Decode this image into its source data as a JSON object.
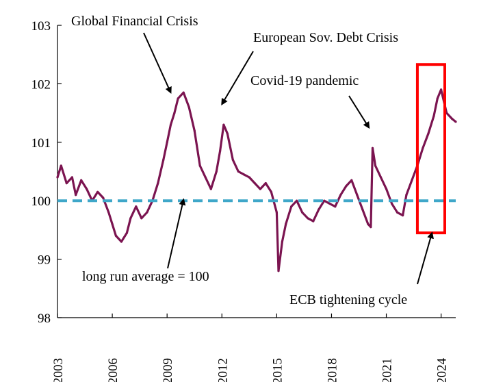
{
  "chart_data": {
    "type": "line",
    "title": "",
    "xlabel": "",
    "ylabel": "",
    "x_ticks": [
      "2003",
      "2006",
      "2009",
      "2012",
      "2015",
      "2018",
      "2021",
      "2024"
    ],
    "y_ticks": [
      "98",
      "99",
      "100",
      "101",
      "102",
      "103"
    ],
    "xlim": [
      2003.0,
      2024.8
    ],
    "ylim": [
      98,
      103
    ],
    "grid": false,
    "series": [
      {
        "color": "#7b1450",
        "style": "solid",
        "x": [
          2003.0,
          2003.2,
          2003.5,
          2003.8,
          2004.0,
          2004.3,
          2004.6,
          2004.9,
          2005.2,
          2005.5,
          2005.8,
          2006.0,
          2006.2,
          2006.5,
          2006.8,
          2007.0,
          2007.3,
          2007.6,
          2007.9,
          2008.2,
          2008.5,
          2008.8,
          2009.0,
          2009.2,
          2009.4,
          2009.6,
          2009.9,
          2010.2,
          2010.5,
          2010.8,
          2011.1,
          2011.4,
          2011.7,
          2011.9,
          2012.1,
          2012.3,
          2012.6,
          2012.9,
          2013.2,
          2013.5,
          2013.8,
          2014.1,
          2014.4,
          2014.7,
          2015.0,
          2015.1,
          2015.3,
          2015.5,
          2015.8,
          2016.1,
          2016.4,
          2016.7,
          2017.0,
          2017.3,
          2017.6,
          2017.9,
          2018.2,
          2018.5,
          2018.8,
          2019.1,
          2019.4,
          2019.7,
          2020.0,
          2020.15,
          2020.25,
          2020.4,
          2020.7,
          2021.0,
          2021.3,
          2021.6,
          2021.9,
          2022.1,
          2022.4,
          2022.7,
          2023.0,
          2023.3,
          2023.6,
          2023.8,
          2024.0,
          2024.3,
          2024.6,
          2024.8
        ],
        "y": [
          100.4,
          100.6,
          100.3,
          100.4,
          100.1,
          100.35,
          100.2,
          100.0,
          100.15,
          100.05,
          99.8,
          99.6,
          99.4,
          99.3,
          99.45,
          99.7,
          99.9,
          99.7,
          99.8,
          100.0,
          100.3,
          100.7,
          101.0,
          101.3,
          101.5,
          101.75,
          101.85,
          101.6,
          101.2,
          100.6,
          100.4,
          100.2,
          100.5,
          100.85,
          101.3,
          101.15,
          100.7,
          100.5,
          100.45,
          100.4,
          100.3,
          100.2,
          100.3,
          100.15,
          99.8,
          98.8,
          99.3,
          99.6,
          99.9,
          100.0,
          99.8,
          99.7,
          99.65,
          99.85,
          100.0,
          99.95,
          99.9,
          100.1,
          100.25,
          100.35,
          100.1,
          99.85,
          99.6,
          99.55,
          100.9,
          100.6,
          100.4,
          100.2,
          99.95,
          99.8,
          99.75,
          100.1,
          100.35,
          100.6,
          100.9,
          101.15,
          101.45,
          101.75,
          101.9,
          101.5,
          101.4,
          101.35
        ]
      },
      {
        "name": "long run average = 100",
        "color": "#3fa7c9",
        "style": "dashed",
        "x": [
          2003.0,
          2024.8
        ],
        "y": [
          100,
          100
        ]
      }
    ],
    "annotations": [
      {
        "text": "Global Financial Crisis",
        "arrow_to": [
          2009.2,
          101.85
        ]
      },
      {
        "text": "European Sov. Debt Crisis",
        "arrow_to": [
          2012.0,
          101.65
        ]
      },
      {
        "text": "Covid-19 pandemic",
        "arrow_to": [
          2020.05,
          101.25
        ]
      },
      {
        "text": "long run average  = 100",
        "arrow_to": [
          2009.9,
          100.02
        ]
      },
      {
        "text": "ECB tightening cycle",
        "arrow_to": [
          2023.5,
          99.45
        ]
      }
    ],
    "highlight_box": {
      "x": [
        2022.7,
        2024.2
      ],
      "y": [
        99.45,
        102.33
      ],
      "color": "#ff0000"
    }
  }
}
